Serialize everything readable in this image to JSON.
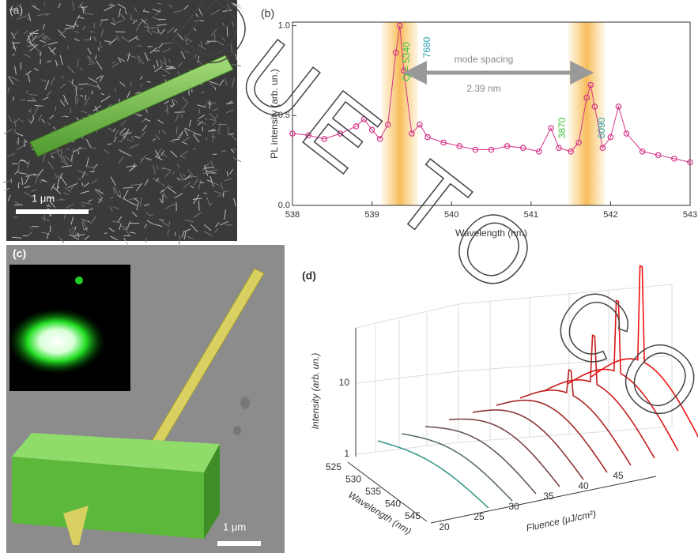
{
  "panel_a": {
    "label": "(a)",
    "scale_bar": "1 μm"
  },
  "chart_data": {
    "type": "scatter",
    "label": "(b)",
    "xlabel": "Wavelength (nm)",
    "ylabel": "PL intensity (arb. un.)",
    "x": [
      538.0,
      538.2,
      538.4,
      538.6,
      538.8,
      538.9,
      539.0,
      539.1,
      539.2,
      539.3,
      539.35,
      539.4,
      539.5,
      539.6,
      539.7,
      539.9,
      540.1,
      540.3,
      540.5,
      540.7,
      540.9,
      541.1,
      541.25,
      541.35,
      541.5,
      541.6,
      541.7,
      541.75,
      541.8,
      541.9,
      542.0,
      542.1,
      542.2,
      542.4,
      542.6,
      542.8,
      543.0
    ],
    "values": [
      0.4,
      0.39,
      0.37,
      0.4,
      0.44,
      0.48,
      0.42,
      0.37,
      0.45,
      0.85,
      1.0,
      0.75,
      0.4,
      0.45,
      0.38,
      0.35,
      0.33,
      0.31,
      0.31,
      0.33,
      0.32,
      0.3,
      0.43,
      0.32,
      0.3,
      0.35,
      0.6,
      0.67,
      0.55,
      0.32,
      0.38,
      0.55,
      0.4,
      0.3,
      0.28,
      0.26,
      0.24
    ],
    "color": "#d6338a",
    "xlim": [
      538,
      543
    ],
    "ylim": [
      0,
      1.02
    ],
    "xticks": [
      538,
      539,
      540,
      541,
      542,
      543
    ],
    "yticks": [
      {
        "value": 0,
        "label": "0.0"
      },
      0.5,
      {
        "value": 1,
        "label": "1.0"
      }
    ],
    "highlight_bands": [
      [
        539.2,
        539.5
      ],
      [
        541.55,
        541.85
      ]
    ],
    "annotations": [
      "Q = 5340",
      "7680",
      "mode spacing",
      "2.39 nm",
      "3870",
      "6090"
    ]
  },
  "panel_c": {
    "label": "(c)",
    "scale_bar": "1 μm"
  },
  "panel_d": {
    "label": "(d)",
    "z_label": "Intensity (arb. un.)",
    "z_ticks": [
      1,
      10
    ],
    "y_label": "Wavelength (nm)",
    "y_ticks": [
      525,
      530,
      535,
      540,
      545
    ],
    "x_label": "Fluence (μJ/cm²)",
    "x_ticks": [
      20,
      25,
      30,
      35,
      40,
      45
    ]
  },
  "watermark": "DUE TO COV"
}
